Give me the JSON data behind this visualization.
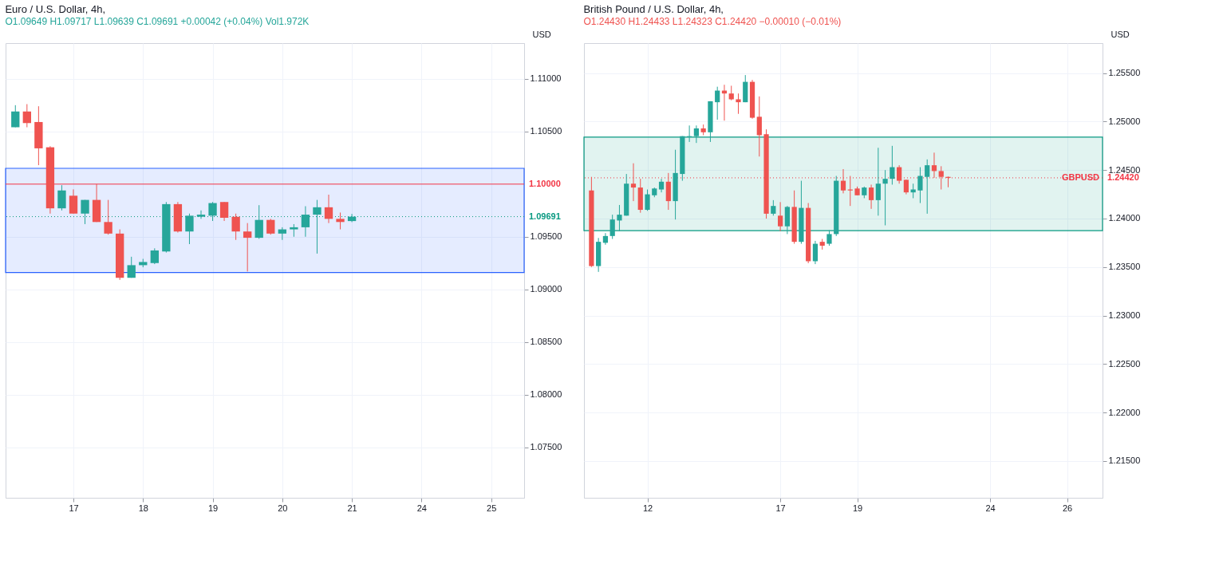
{
  "chart_data": [
    {
      "type": "candlestick",
      "title": "Euro / U.S. Dollar, 4h,",
      "subtitle": "O1.09649 H1.09717 L1.09639 C1.09691 +0.00042 (+0.04%) Vol1.972K",
      "ylabel": "USD",
      "categories": [
        null,
        null,
        null,
        null,
        null,
        "17",
        null,
        null,
        null,
        null,
        null,
        "18",
        null,
        null,
        null,
        null,
        null,
        "19",
        null,
        null,
        null,
        null,
        null,
        "20",
        null,
        null,
        null,
        null,
        null,
        "21",
        null,
        null,
        null,
        null,
        null,
        "24",
        null,
        null,
        null,
        null,
        null,
        "25",
        null,
        null
      ],
      "ohlc": [
        [
          1.1054,
          1.1075,
          1.1054,
          1.1069
        ],
        [
          1.1069,
          1.1076,
          1.1054,
          1.1058
        ],
        [
          1.1059,
          1.1074,
          1.1018,
          1.1034
        ],
        [
          1.1035,
          1.1036,
          1.0972,
          1.0977
        ],
        [
          1.0977,
          1.0999,
          1.0975,
          1.0994
        ],
        [
          1.0989,
          1.0995,
          1.0972,
          1.0972
        ],
        [
          1.0972,
          1.0985,
          1.0962,
          1.0985
        ],
        [
          1.0985,
          1.1,
          1.0964,
          1.0964
        ],
        [
          1.0964,
          1.0985,
          1.0952,
          1.0953
        ],
        [
          1.0953,
          1.0957,
          1.0909,
          1.0911
        ],
        [
          1.0911,
          1.0931,
          1.0911,
          1.0923
        ],
        [
          1.0923,
          1.0929,
          1.0921,
          1.0926
        ],
        [
          1.0925,
          1.0939,
          1.0924,
          1.0937
        ],
        [
          1.0936,
          1.0983,
          1.0935,
          1.0981
        ],
        [
          1.0981,
          1.0983,
          1.0954,
          1.0955
        ],
        [
          1.0955,
          1.0972,
          1.0943,
          1.097
        ],
        [
          1.0969,
          1.0975,
          1.0967,
          1.0971
        ],
        [
          1.097,
          1.0983,
          1.0965,
          1.0982
        ],
        [
          1.0983,
          1.0983,
          1.0965,
          1.0968
        ],
        [
          1.0969,
          1.0972,
          1.0947,
          1.0955
        ],
        [
          1.0955,
          1.0963,
          1.0917,
          1.0949
        ],
        [
          1.0949,
          1.098,
          1.0948,
          1.0966
        ],
        [
          1.0966,
          1.0967,
          1.0952,
          1.0953
        ],
        [
          1.0953,
          1.0959,
          1.0947,
          1.0957
        ],
        [
          1.0957,
          1.0962,
          1.095,
          1.0959
        ],
        [
          1.0959,
          1.0979,
          1.095,
          1.0971
        ],
        [
          1.0971,
          1.0985,
          1.0934,
          1.0978
        ],
        [
          1.0978,
          1.099,
          1.0963,
          1.0967
        ],
        [
          1.0967,
          1.0973,
          1.0957,
          1.0964
        ],
        [
          1.09649,
          1.09717,
          1.09639,
          1.09691
        ],
        null,
        null,
        null,
        null,
        null,
        null,
        null,
        null,
        null,
        null,
        null,
        null,
        null,
        null
      ],
      "colors": [
        "#26a69a",
        "#ef5350",
        "#ef5350",
        "#ef5350",
        "#26a69a",
        "#ef5350",
        "#26a69a",
        "#ef5350",
        "#ef5350",
        "#ef5350",
        "#26a69a",
        "#26a69a",
        "#26a69a",
        "#26a69a",
        "#ef5350",
        "#26a69a",
        "#26a69a",
        "#26a69a",
        "#ef5350",
        "#ef5350",
        "#ef5350",
        "#26a69a",
        "#ef5350",
        "#26a69a",
        "#26a69a",
        "#26a69a",
        "#26a69a",
        "#ef5350",
        "#ef5350",
        "#26a69a",
        null,
        null,
        null,
        null,
        null,
        null,
        null,
        null,
        null,
        null,
        null,
        null,
        null,
        null
      ],
      "ylim": [
        1.0702,
        1.1134
      ],
      "yticks": [
        {
          "value": 1.075,
          "label": "1.07500"
        },
        {
          "value": 1.08,
          "label": "1.08000"
        },
        {
          "value": 1.085,
          "label": "1.08500"
        },
        {
          "value": 1.09,
          "label": "1.09000"
        },
        {
          "value": 1.095,
          "label": "1.09500"
        },
        {
          "value": 1.105,
          "label": "1.10500"
        },
        {
          "value": 1.11,
          "label": "1.11000"
        }
      ],
      "ref_lines": [
        {
          "axis": "y",
          "value": 1.1,
          "label": "1.10000",
          "color": "#f23645",
          "line_style": "solid"
        },
        {
          "axis": "y",
          "value": 1.09691,
          "label": "1.09691",
          "color": "#089981",
          "line_style": "dotted"
        }
      ],
      "bands": [
        {
          "axis": "y",
          "from": 1.0916,
          "to": 1.1015,
          "color": "#2962ff"
        }
      ],
      "grid": true
    },
    {
      "type": "candlestick",
      "title": "British Pound / U.S. Dollar, 4h,",
      "subtitle": "O1.24430 H1.24433 L1.24323 C1.24420 −0.00010 (−0.01%)",
      "ylabel": "USD",
      "categories": [
        null,
        null,
        null,
        null,
        null,
        null,
        null,
        null,
        "12",
        null,
        null,
        null,
        null,
        null,
        null,
        null,
        null,
        null,
        null,
        null,
        null,
        null,
        null,
        null,
        null,
        null,
        null,
        "17",
        null,
        null,
        null,
        null,
        null,
        null,
        null,
        null,
        null,
        null,
        "19",
        null,
        null,
        null,
        null,
        null,
        null,
        null,
        null,
        null,
        null,
        null,
        null,
        null,
        null,
        null,
        null,
        null,
        null,
        "24",
        null,
        null,
        null,
        null,
        null,
        null,
        null,
        null,
        null,
        null,
        "26",
        null,
        null,
        null,
        null
      ],
      "ohlc": [
        [
          1.2429,
          1.2443,
          1.235,
          1.2351
        ],
        [
          1.2351,
          1.238,
          1.2345,
          1.2376
        ],
        [
          1.2375,
          1.2385,
          1.2373,
          1.2382
        ],
        [
          1.2382,
          1.2404,
          1.2379,
          1.2399
        ],
        [
          1.2398,
          1.2414,
          1.2387,
          1.2404
        ],
        [
          1.2403,
          1.2446,
          1.2403,
          1.2436
        ],
        [
          1.2436,
          1.2457,
          1.2418,
          1.2432
        ],
        [
          1.2432,
          1.2441,
          1.2406,
          1.2409
        ],
        [
          1.2409,
          1.243,
          1.2408,
          1.2425
        ],
        [
          1.2424,
          1.2432,
          1.2422,
          1.2431
        ],
        [
          1.243,
          1.2441,
          1.2427,
          1.2438
        ],
        [
          1.2438,
          1.2447,
          1.2409,
          1.2418
        ],
        [
          1.2418,
          1.2471,
          1.2399,
          1.2447
        ],
        [
          1.2446,
          1.2485,
          1.2439,
          1.2485
        ],
        [
          1.2484,
          1.2496,
          1.2479,
          1.2485
        ],
        [
          1.2485,
          1.2496,
          1.2478,
          1.2493
        ],
        [
          1.2493,
          1.2497,
          1.2486,
          1.2489
        ],
        [
          1.2489,
          1.2521,
          1.2479,
          1.2521
        ],
        [
          1.252,
          1.2536,
          1.2502,
          1.2532
        ],
        [
          1.2532,
          1.2538,
          1.2501,
          1.2529
        ],
        [
          1.2529,
          1.2537,
          1.2522,
          1.2523
        ],
        [
          1.2523,
          1.2529,
          1.2508,
          1.252
        ],
        [
          1.252,
          1.2548,
          1.252,
          1.2541
        ],
        [
          1.2541,
          1.2543,
          1.2503,
          1.2504
        ],
        [
          1.2505,
          1.2526,
          1.2464,
          1.2486
        ],
        [
          1.2487,
          1.2492,
          1.24,
          1.2405
        ],
        [
          1.2405,
          1.2419,
          1.2403,
          1.2413
        ],
        [
          1.2403,
          1.2417,
          1.2387,
          1.2392
        ],
        [
          1.2392,
          1.2413,
          1.2384,
          1.2412
        ],
        [
          1.2412,
          1.2429,
          1.2374,
          1.2376
        ],
        [
          1.2376,
          1.2439,
          1.2374,
          1.2411
        ],
        [
          1.2411,
          1.2416,
          1.2354,
          1.2356
        ],
        [
          1.2356,
          1.2377,
          1.2353,
          1.2374
        ],
        [
          1.2376,
          1.2379,
          1.2368,
          1.2372
        ],
        [
          1.2374,
          1.2388,
          1.2372,
          1.2384
        ],
        [
          1.2384,
          1.2444,
          1.2382,
          1.2439
        ],
        [
          1.2439,
          1.2451,
          1.2426,
          1.2429
        ],
        [
          1.243,
          1.2444,
          1.2413,
          1.2429
        ],
        [
          1.2431,
          1.2433,
          1.2424,
          1.2424
        ],
        [
          1.2424,
          1.2433,
          1.2421,
          1.2432
        ],
        [
          1.2432,
          1.2435,
          1.241,
          1.2419
        ],
        [
          1.2419,
          1.2473,
          1.2403,
          1.2436
        ],
        [
          1.2436,
          1.245,
          1.2393,
          1.2441
        ],
        [
          1.2441,
          1.2475,
          1.2435,
          1.2453
        ],
        [
          1.2453,
          1.2455,
          1.2436,
          1.2439
        ],
        [
          1.244,
          1.244,
          1.2425,
          1.2427
        ],
        [
          1.2427,
          1.2436,
          1.2421,
          1.243
        ],
        [
          1.2429,
          1.2453,
          1.2416,
          1.2444
        ],
        [
          1.2443,
          1.2461,
          1.2405,
          1.2455
        ],
        [
          1.2455,
          1.2468,
          1.2442,
          1.2449
        ],
        [
          1.2449,
          1.2454,
          1.243,
          1.2443
        ],
        [
          1.2443,
          1.24433,
          1.24323,
          1.2442
        ],
        null,
        null,
        null,
        null,
        null,
        null,
        null,
        null,
        null,
        null,
        null,
        null,
        null,
        null,
        null,
        null,
        null,
        null,
        null,
        null,
        null
      ],
      "colors": [
        "#ef5350",
        "#26a69a",
        "#26a69a",
        "#26a69a",
        "#26a69a",
        "#26a69a",
        "#ef5350",
        "#ef5350",
        "#26a69a",
        "#26a69a",
        "#26a69a",
        "#ef5350",
        "#26a69a",
        "#26a69a",
        "#26a69a",
        "#26a69a",
        "#ef5350",
        "#26a69a",
        "#26a69a",
        "#ef5350",
        "#ef5350",
        "#ef5350",
        "#26a69a",
        "#ef5350",
        "#ef5350",
        "#ef5350",
        "#26a69a",
        "#ef5350",
        "#26a69a",
        "#ef5350",
        "#26a69a",
        "#ef5350",
        "#26a69a",
        "#ef5350",
        "#26a69a",
        "#26a69a",
        "#ef5350",
        "#ef5350",
        "#ef5350",
        "#26a69a",
        "#ef5350",
        "#26a69a",
        "#26a69a",
        "#26a69a",
        "#ef5350",
        "#ef5350",
        "#26a69a",
        "#26a69a",
        "#26a69a",
        "#ef5350",
        "#ef5350",
        "#ef5350",
        null,
        null,
        null,
        null,
        null,
        null,
        null,
        null,
        null,
        null,
        null,
        null,
        null,
        null,
        null,
        null,
        null,
        null,
        null,
        null,
        null
      ],
      "ylim": [
        1.2112,
        1.2581
      ],
      "yticks": [
        {
          "value": 1.215,
          "label": "1.21500"
        },
        {
          "value": 1.22,
          "label": "1.22000"
        },
        {
          "value": 1.225,
          "label": "1.22500"
        },
        {
          "value": 1.23,
          "label": "1.23000"
        },
        {
          "value": 1.235,
          "label": "1.23500"
        },
        {
          "value": 1.24,
          "label": "1.24000"
        },
        {
          "value": 1.245,
          "label": "1.24500"
        },
        {
          "value": 1.25,
          "label": "1.25000"
        },
        {
          "value": 1.255,
          "label": "1.25500"
        }
      ],
      "ref_lines": [
        {
          "axis": "y",
          "value": 1.2442,
          "label": "1.24420",
          "color": "#f23645",
          "line_style": "dotted"
        }
      ],
      "bands": [
        {
          "axis": "y",
          "from": 1.23875,
          "to": 1.2484,
          "color": "#089981"
        }
      ],
      "annotations": [
        {
          "text": "GBPUSD",
          "y": 1.2442
        }
      ],
      "grid": true
    }
  ]
}
